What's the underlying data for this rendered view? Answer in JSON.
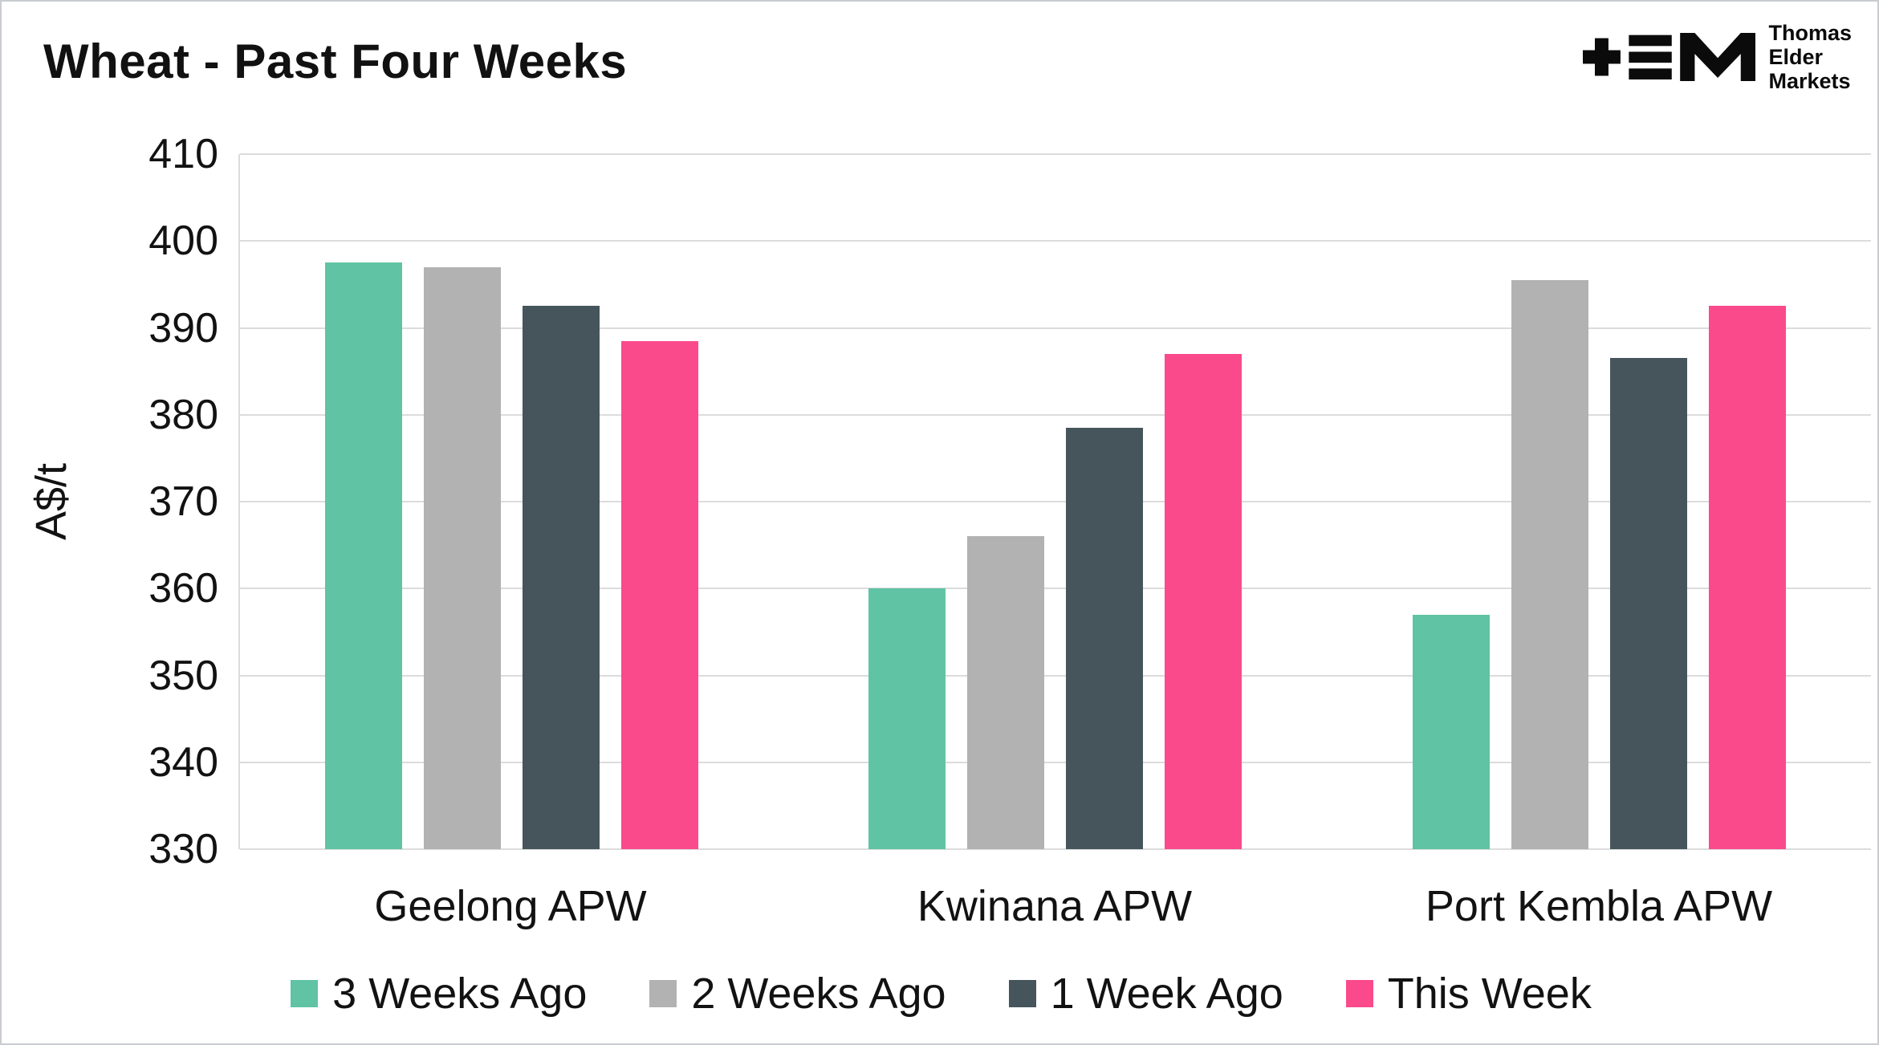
{
  "title": "Wheat - Past Four Weeks",
  "logo": {
    "lines": [
      "Thomas",
      "Elder",
      "Markets"
    ]
  },
  "chart_data": {
    "type": "bar",
    "title": "Wheat - Past Four Weeks",
    "xlabel": "",
    "ylabel": "A$/t",
    "ylim": [
      330,
      410
    ],
    "ytick_step": 10,
    "grid": true,
    "legend_position": "bottom",
    "categories": [
      "Geelong APW",
      "Kwinana APW",
      "Port Kembla APW"
    ],
    "series": [
      {
        "name": "3 Weeks Ago",
        "color": "#5fc3a4",
        "values": [
          397.5,
          360,
          357
        ]
      },
      {
        "name": "2 Weeks Ago",
        "color": "#b2b2b2",
        "values": [
          397,
          366,
          395.5
        ]
      },
      {
        "name": "1 Week Ago",
        "color": "#46555c",
        "values": [
          392.5,
          378.5,
          386.5
        ]
      },
      {
        "name": "This Week",
        "color": "#fb4a8c",
        "values": [
          388.5,
          387,
          392.5
        ]
      }
    ]
  }
}
